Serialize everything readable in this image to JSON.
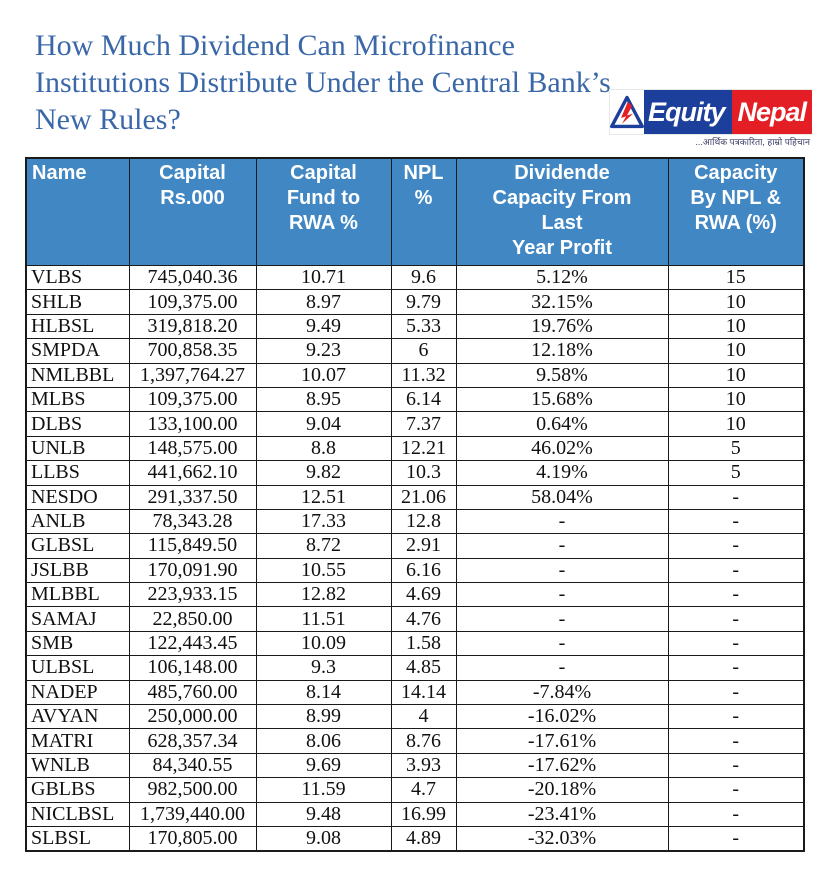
{
  "title": {
    "text": "How Much Dividend Can Microfinance\nInstitutions Distribute Under the Central Bank’s\nNew Rules?"
  },
  "logo": {
    "brand_first": "Equity",
    "brand_second": "Nepal",
    "tagline": "...आर्थिक पत्रकारिता, हाम्रो पहिचान",
    "icon": "mountain-triangle-icon",
    "blue": "#1d3f9c",
    "red": "#e31e25"
  },
  "colors": {
    "header_bg": "#4187c4",
    "title_text": "#3a67a8",
    "table_border": "#1a1a1a"
  },
  "chart_data": {
    "type": "table",
    "title": "How Much Dividend Can Microfinance Institutions Distribute Under the Central Bank’s New Rules?",
    "columns": [
      "Name",
      "Capital Rs.000",
      "Capital Fund to RWA %",
      "NPL %",
      "Dividende Capacity From Last Year Profit",
      "Capacity By NPL & RWA (%)"
    ],
    "header_display": [
      "Name",
      "Capital\nRs.000",
      "Capital\nFund to\nRWA %",
      "NPL\n%",
      "Dividende\nCapacity From\nLast\nYear Profit",
      "Capacity\nBy NPL &\nRWA (%)"
    ],
    "rows": [
      [
        "VLBS",
        "745,040.36",
        "10.71",
        "9.6",
        "5.12%",
        "15"
      ],
      [
        "SHLB",
        "109,375.00",
        "8.97",
        "9.79",
        "32.15%",
        "10"
      ],
      [
        "HLBSL",
        "319,818.20",
        "9.49",
        "5.33",
        "19.76%",
        "10"
      ],
      [
        "SMPDA",
        "700,858.35",
        "9.23",
        "6",
        "12.18%",
        "10"
      ],
      [
        "NMLBBL",
        "1,397,764.27",
        "10.07",
        "11.32",
        "9.58%",
        "10"
      ],
      [
        "MLBS",
        "109,375.00",
        "8.95",
        "6.14",
        "15.68%",
        "10"
      ],
      [
        "DLBS",
        "133,100.00",
        "9.04",
        "7.37",
        "0.64%",
        "10"
      ],
      [
        "UNLB",
        "148,575.00",
        "8.8",
        "12.21",
        "46.02%",
        "5"
      ],
      [
        "LLBS",
        "441,662.10",
        "9.82",
        "10.3",
        "4.19%",
        "5"
      ],
      [
        "NESDO",
        "291,337.50",
        "12.51",
        "21.06",
        "58.04%",
        "-"
      ],
      [
        "ANLB",
        "78,343.28",
        "17.33",
        "12.8",
        "-",
        "-"
      ],
      [
        "GLBSL",
        "115,849.50",
        "8.72",
        "2.91",
        "-",
        "-"
      ],
      [
        "JSLBB",
        "170,091.90",
        "10.55",
        "6.16",
        "-",
        "-"
      ],
      [
        "MLBBL",
        "223,933.15",
        "12.82",
        "4.69",
        "-",
        "-"
      ],
      [
        "SAMAJ",
        "22,850.00",
        "11.51",
        "4.76",
        "-",
        "-"
      ],
      [
        "SMB",
        "122,443.45",
        "10.09",
        "1.58",
        "-",
        "-"
      ],
      [
        "ULBSL",
        "106,148.00",
        "9.3",
        "4.85",
        "-",
        "-"
      ],
      [
        "NADEP",
        "485,760.00",
        "8.14",
        "14.14",
        "-7.84%",
        "-"
      ],
      [
        "AVYAN",
        "250,000.00",
        "8.99",
        "4",
        "-16.02%",
        "-"
      ],
      [
        "MATRI",
        "628,357.34",
        "8.06",
        "8.76",
        "-17.61%",
        "-"
      ],
      [
        "WNLB",
        "84,340.55",
        "9.69",
        "3.93",
        "-17.62%",
        "-"
      ],
      [
        "GBLBS",
        "982,500.00",
        "11.59",
        "4.7",
        "-20.18%",
        "-"
      ],
      [
        "NICLBSL",
        "1,739,440.00",
        "9.48",
        "16.99",
        "-23.41%",
        "-"
      ],
      [
        "SLBSL",
        "170,805.00",
        "9.08",
        "4.89",
        "-32.03%",
        "-"
      ]
    ]
  }
}
